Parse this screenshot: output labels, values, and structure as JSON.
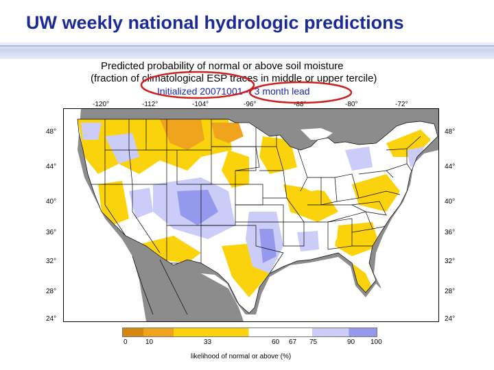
{
  "slide": {
    "title": "UW weekly national hydrologic predictions"
  },
  "figure": {
    "title": "Predicted probability of normal or above soil moisture",
    "subtitle": "(fraction of climatological ESP traces in middle or upper tercile)",
    "init_text": "Initialized 20071001 -- 3 month lead",
    "longitude_labels": [
      "-120°",
      "-112°",
      "-104°",
      "-96°",
      "-88°",
      "-80°",
      "-72°"
    ],
    "latitude_labels": [
      "48°",
      "44°",
      "40°",
      "36°",
      "32°",
      "28°",
      "24°"
    ],
    "colorbar": {
      "ticks": [
        "0",
        "10",
        "33",
        "60",
        "67",
        "75",
        "90",
        "100"
      ],
      "label": "likelihood of normal or above (%)",
      "colors": [
        "#d6870e",
        "#f0a41e",
        "#fad30c",
        "#ffffff",
        "#cbccf7",
        "#9599ee"
      ]
    },
    "highlight_color": "#cc1f1f",
    "land_outside_color": "#8c8c8c",
    "water_color": "#ffffff"
  }
}
